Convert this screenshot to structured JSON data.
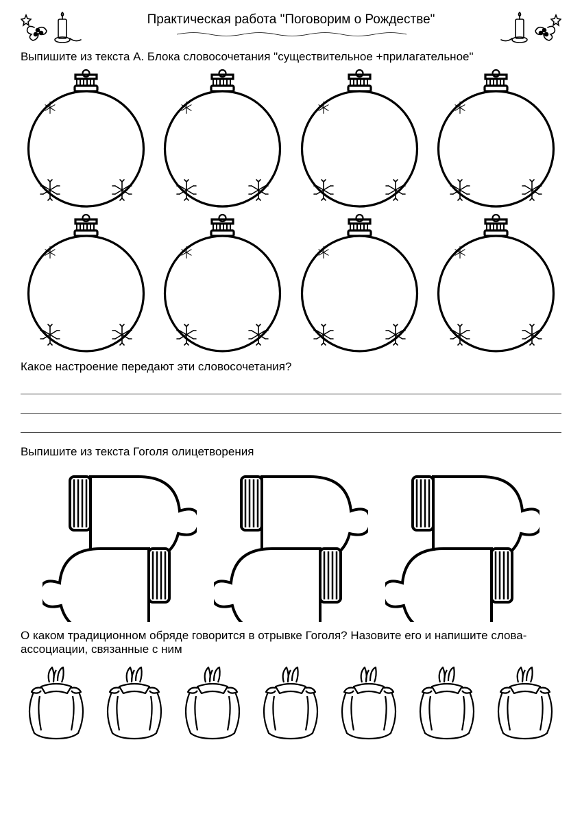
{
  "title": "Практическая работа \"Поговорим о Рождестве\"",
  "task1_instruction": "Выпишите из текста А. Блока словосочетания \"существительное +прилагательное\"",
  "task1_question": "Какое настроение передают эти словосочетания?",
  "task2_instruction": "Выпишите из текста Гоголя олицетворения",
  "task3_instruction": "О каком традиционном обряде говорится в отрывке Гоголя? Назовите его и напишите слова-ассоциации, связанные с ним",
  "ornament_count": 8,
  "mitten_pair_count": 3,
  "bag_count": 7,
  "writing_lines": 3,
  "colors": {
    "stroke": "#000000",
    "background": "#ffffff",
    "line": "#555555"
  },
  "fonts": {
    "body_size_pt": 13,
    "title_size_pt": 14
  }
}
